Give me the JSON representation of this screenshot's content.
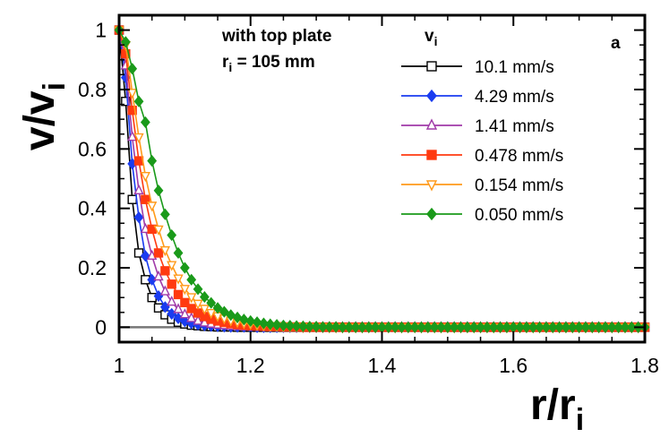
{
  "chart_data": {
    "type": "line",
    "panel_label": "a",
    "annotation_line1": "with top plate",
    "annotation_line2_prefix": "r",
    "annotation_line2_sub": "i",
    "annotation_line2_suffix": " = 105 mm",
    "legend_title_main": "v",
    "legend_title_sub": "i",
    "xlabel_main": "r/r",
    "xlabel_sub": "i",
    "ylabel_main": "v/v",
    "ylabel_sub": "i",
    "xlim": [
      1.0,
      1.8
    ],
    "ylim": [
      -0.05,
      1.05
    ],
    "xticks": [
      1,
      1.2,
      1.4,
      1.6,
      1.8
    ],
    "xtick_labels": [
      "1",
      "1.2",
      "1.4",
      "1.6",
      "1.8"
    ],
    "yticks": [
      0,
      0.2,
      0.4,
      0.6,
      0.8,
      1
    ],
    "ytick_labels": [
      "0",
      "0.2",
      "0.4",
      "0.6",
      "0.8",
      "1"
    ],
    "zero_line": true,
    "legend_position": "top-right",
    "x_step": 0.01,
    "series": [
      {
        "name": "10.1 mm/s",
        "color": "#000000",
        "marker": "square-open",
        "x_start": 1.0,
        "x_end": 1.8,
        "values": [
          1.0,
          0.76,
          0.43,
          0.25,
          0.16,
          0.1,
          0.065,
          0.042,
          0.027,
          0.017,
          0.011,
          0.007,
          0.005,
          0.003,
          0.002,
          0.001,
          0.001,
          0.001,
          0.0,
          0.0,
          0.0,
          0.0,
          0.0,
          0.0,
          0.0,
          0.0,
          0.0,
          0.0,
          0.0,
          0.0,
          0.0,
          0.0,
          0.0,
          0.0,
          0.0,
          0.0,
          0.0,
          0.0,
          0.0,
          0.0,
          0.0,
          0.0,
          0.0,
          0.0,
          0.0,
          0.0,
          0.0,
          0.0,
          0.0,
          0.0,
          0.0,
          0.0,
          0.0,
          0.0,
          0.0,
          0.0,
          0.0,
          0.0,
          0.0,
          0.0,
          0.0,
          0.0,
          0.0,
          0.0,
          0.0,
          0.0,
          0.0,
          0.0,
          0.0,
          0.0,
          0.0,
          0.0,
          0.0,
          0.0,
          0.0,
          0.0,
          0.0,
          0.0,
          0.0,
          0.0,
          0.0
        ]
      },
      {
        "name": "4.29 mm/s",
        "color": "#1a3cf0",
        "marker": "diamond-filled",
        "x_start": 1.0,
        "x_end": 1.8,
        "values": [
          1.0,
          0.84,
          0.55,
          0.37,
          0.24,
          0.16,
          0.105,
          0.068,
          0.045,
          0.03,
          0.02,
          0.013,
          0.009,
          0.006,
          0.004,
          0.003,
          0.002,
          0.001,
          0.001,
          0.001,
          0.0,
          0.0,
          0.0,
          0.0,
          0.0,
          0.0,
          0.0,
          0.0,
          0.0,
          0.0,
          0.0,
          0.0,
          0.0,
          0.0,
          0.0,
          0.0,
          0.0,
          0.0,
          0.0,
          0.0,
          0.0,
          0.0,
          0.0,
          0.0,
          0.0,
          0.0,
          0.0,
          0.0,
          0.0,
          0.0,
          0.0,
          0.0,
          0.0,
          0.0,
          0.0,
          0.0,
          0.0,
          0.0,
          0.0,
          0.0,
          0.0,
          0.0,
          0.0,
          0.0,
          0.0,
          0.0,
          0.0,
          0.0,
          0.0,
          0.0,
          0.0,
          0.0,
          0.0,
          0.0,
          0.0,
          0.0,
          0.0,
          0.0,
          0.0,
          0.0,
          0.0
        ]
      },
      {
        "name": "1.41 mm/s",
        "color": "#a03aa8",
        "marker": "triangle-up-open",
        "x_start": 1.0,
        "x_end": 1.8,
        "values": [
          1.0,
          0.88,
          0.64,
          0.46,
          0.33,
          0.24,
          0.17,
          0.12,
          0.085,
          0.06,
          0.043,
          0.03,
          0.021,
          0.015,
          0.011,
          0.008,
          0.006,
          0.004,
          0.003,
          0.002,
          0.001,
          0.001,
          0.001,
          0.0,
          0.0,
          0.0,
          0.0,
          0.0,
          0.0,
          0.0,
          0.0,
          0.0,
          0.0,
          0.0,
          0.0,
          0.0,
          0.0,
          0.0,
          0.0,
          0.0,
          0.0,
          0.0,
          0.0,
          0.0,
          0.0,
          0.0,
          0.0,
          0.0,
          0.0,
          0.0,
          0.0,
          0.0,
          0.0,
          0.0,
          0.0,
          0.0,
          0.0,
          0.0,
          0.0,
          0.0,
          0.0,
          0.0,
          0.0,
          0.0,
          0.0,
          0.0,
          0.0,
          0.0,
          0.0,
          0.0,
          0.0,
          0.0,
          0.0,
          0.0,
          0.0,
          0.0,
          0.0,
          0.0,
          0.0,
          0.0,
          0.0
        ]
      },
      {
        "name": "0.478 mm/s",
        "color": "#ff3a10",
        "marker": "square-filled",
        "x_start": 1.0,
        "x_end": 1.8,
        "values": [
          1.0,
          0.92,
          0.73,
          0.56,
          0.43,
          0.33,
          0.25,
          0.19,
          0.145,
          0.11,
          0.083,
          0.063,
          0.048,
          0.036,
          0.027,
          0.021,
          0.016,
          0.012,
          0.009,
          0.007,
          0.005,
          0.004,
          0.003,
          0.002,
          0.002,
          0.001,
          0.001,
          0.001,
          0.0,
          0.0,
          0.0,
          0.0,
          0.0,
          0.0,
          0.0,
          0.0,
          0.0,
          0.0,
          0.0,
          0.0,
          0.0,
          0.0,
          0.0,
          0.0,
          0.0,
          0.0,
          0.0,
          0.0,
          0.0,
          0.0,
          0.0,
          0.0,
          0.0,
          0.0,
          0.0,
          0.0,
          0.0,
          0.0,
          0.0,
          0.0,
          0.0,
          0.0,
          0.0,
          0.0,
          0.0,
          0.0,
          0.0,
          0.0,
          0.0,
          0.0,
          0.0,
          0.0,
          0.0,
          0.0,
          0.0,
          0.0,
          0.0,
          0.0,
          0.0,
          0.0,
          0.0
        ]
      },
      {
        "name": "0.154 mm/s",
        "color": "#ff9a1a",
        "marker": "triangle-down-open",
        "x_start": 1.0,
        "x_end": 1.8,
        "values": [
          1.0,
          0.95,
          0.79,
          0.64,
          0.51,
          0.41,
          0.33,
          0.26,
          0.21,
          0.165,
          0.13,
          0.102,
          0.08,
          0.063,
          0.049,
          0.038,
          0.03,
          0.023,
          0.018,
          0.014,
          0.011,
          0.008,
          0.006,
          0.005,
          0.004,
          0.003,
          0.002,
          0.002,
          0.001,
          0.001,
          0.001,
          0.001,
          0.0,
          0.0,
          0.0,
          0.0,
          0.0,
          0.0,
          0.0,
          0.0,
          0.0,
          0.0,
          0.0,
          0.0,
          0.0,
          0.0,
          0.0,
          0.0,
          0.0,
          0.0,
          0.0,
          0.0,
          0.0,
          0.0,
          0.0,
          0.0,
          0.0,
          0.0,
          0.0,
          0.0,
          0.0,
          0.0,
          0.0,
          0.0,
          0.0,
          0.0,
          0.0,
          0.0,
          0.0,
          0.0,
          0.0,
          0.0,
          0.0,
          0.0,
          0.0,
          0.0,
          0.0,
          0.0,
          0.0,
          0.0,
          0.0
        ]
      },
      {
        "name": "0.050 mm/s",
        "color": "#1a9a1a",
        "marker": "diamond-filled",
        "x_start": 1.0,
        "x_end": 1.8,
        "values": [
          1.0,
          0.96,
          0.87,
          0.76,
          0.69,
          0.56,
          0.46,
          0.38,
          0.31,
          0.25,
          0.2,
          0.16,
          0.128,
          0.102,
          0.082,
          0.065,
          0.052,
          0.041,
          0.033,
          0.026,
          0.021,
          0.017,
          0.013,
          0.01,
          0.008,
          0.006,
          0.005,
          0.004,
          0.003,
          0.002,
          0.002,
          0.001,
          0.001,
          0.001,
          0.0,
          0.0,
          0.0,
          0.0,
          0.0,
          0.0,
          0.0,
          0.0,
          0.0,
          0.0,
          0.0,
          0.0,
          0.0,
          0.0,
          0.0,
          0.0,
          0.0,
          0.0,
          0.0,
          0.0,
          0.0,
          0.0,
          0.0,
          0.0,
          0.0,
          0.0,
          0.0,
          0.0,
          0.0,
          0.0,
          0.0,
          0.0,
          0.0,
          0.0,
          0.0,
          0.0,
          0.0,
          0.0,
          0.0,
          0.0,
          0.0,
          0.0,
          0.0,
          0.0,
          0.0,
          0.0,
          0.0
        ]
      }
    ]
  }
}
